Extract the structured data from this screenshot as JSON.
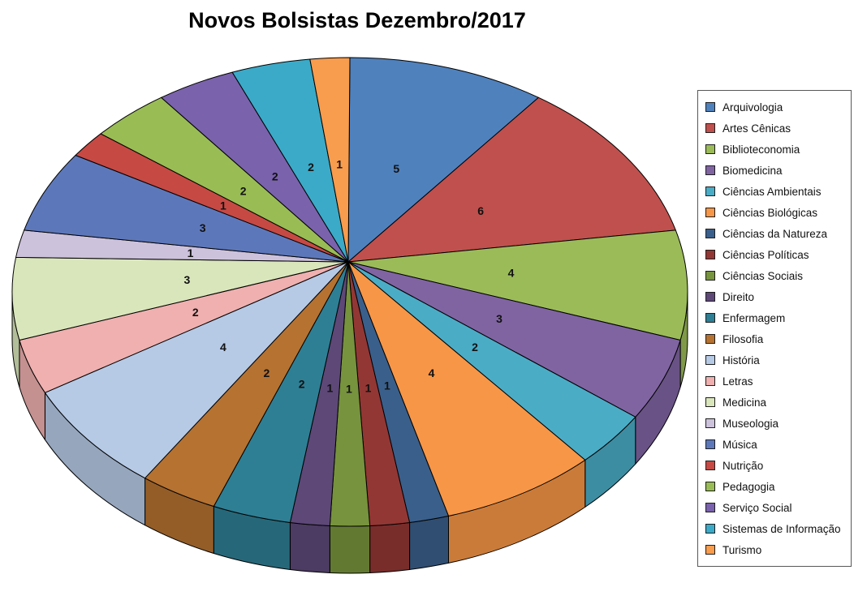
{
  "chart_data": {
    "type": "pie",
    "title": "Novos Bolsistas Dezembro/2017",
    "effect": "3d",
    "legend_position": "right",
    "start_angle_deg": 0,
    "direction": "clockwise",
    "total": 53,
    "categories": [
      "Arquivologia",
      "Artes Cênicas",
      "Biblioteconomia",
      "Biomedicina",
      "Ciências Ambientais",
      "Ciências Biológicas",
      "Ciências da Natureza",
      "Ciências Políticas",
      "Ciências Sociais",
      "Direito",
      "Enfermagem",
      "Filosofia",
      "História",
      "Letras",
      "Medicina",
      "Museologia",
      "Música",
      "Nutrição",
      "Pedagogia",
      "Serviço Social",
      "Sistemas de Informação",
      "Turismo"
    ],
    "values": [
      5,
      6,
      4,
      3,
      2,
      4,
      1,
      1,
      1,
      1,
      2,
      2,
      4,
      2,
      3,
      1,
      3,
      1,
      2,
      2,
      2,
      1
    ],
    "colors": [
      "#4F81BD",
      "#C0504D",
      "#9BBB59",
      "#8064A2",
      "#4BACC6",
      "#F79646",
      "#3A5F8B",
      "#933734",
      "#77933D",
      "#5D4878",
      "#2E7F94",
      "#B57231",
      "#B6CAE6",
      "#EFB0AF",
      "#D9E6BB",
      "#CDC2DC",
      "#5D78BA",
      "#C64944",
      "#99BC55",
      "#7A62AC",
      "#3BAAC8",
      "#F89C4D"
    ],
    "data_labels": "values",
    "stroke_color": "#000000"
  }
}
